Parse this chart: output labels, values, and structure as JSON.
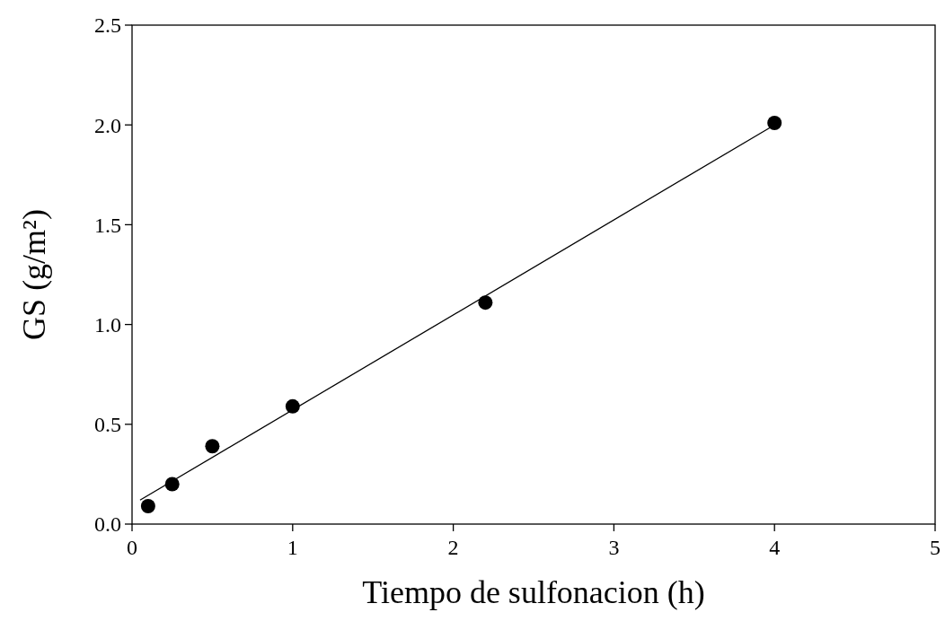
{
  "chart_data": {
    "type": "scatter",
    "xlabel": "Tiempo de sulfonacion (h)",
    "ylabel": "GS (g/m²)",
    "xlim": [
      0,
      5
    ],
    "ylim": [
      0,
      2.5
    ],
    "xticks": [
      0,
      1,
      2,
      3,
      4,
      5
    ],
    "yticks": [
      {
        "value": 0,
        "label": "0.0"
      },
      {
        "value": 0.5,
        "label": "0.5"
      },
      {
        "value": 1,
        "label": "1.0"
      },
      {
        "value": 1.5,
        "label": "1.5"
      },
      {
        "value": 2,
        "label": "2.0"
      },
      {
        "value": 2.5,
        "label": "2.5"
      }
    ],
    "series": [
      {
        "type": "line",
        "color": "#000000",
        "marker": "none",
        "x": [
          0.05,
          4
        ],
        "values": [
          0.12,
          2.0
        ]
      },
      {
        "color": "#000000",
        "marker": "circle",
        "x": [
          0.1,
          0.25,
          0.5,
          1.0,
          2.2,
          4.0
        ],
        "values": [
          0.09,
          0.2,
          0.39,
          0.59,
          1.11,
          2.01
        ]
      }
    ]
  }
}
